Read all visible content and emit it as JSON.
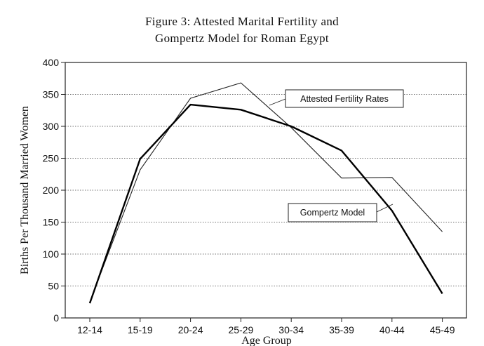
{
  "chart_data": {
    "type": "line",
    "title": "Figure 3: Attested Marital Fertility and",
    "subtitle": "Gompertz Model for Roman Egypt",
    "xlabel": "Age Group",
    "ylabel": "Births Per Thousand Married Women",
    "categories": [
      "12-14",
      "15-19",
      "20-24",
      "25-29",
      "30-34",
      "35-39",
      "40-44",
      "45-49"
    ],
    "ylim": [
      0,
      400
    ],
    "yticks": [
      0,
      50,
      100,
      150,
      200,
      250,
      300,
      350,
      400
    ],
    "grid": "horizontal dotted",
    "series": [
      {
        "name": "Attested Fertility Rates",
        "values": [
          25,
          232,
          344,
          368,
          298,
          219,
          220,
          135
        ],
        "color": "#222222"
      },
      {
        "name": "Gompertz Model",
        "values": [
          23,
          249,
          334,
          326,
          300,
          262,
          168,
          38
        ],
        "color": "#000000"
      }
    ]
  }
}
